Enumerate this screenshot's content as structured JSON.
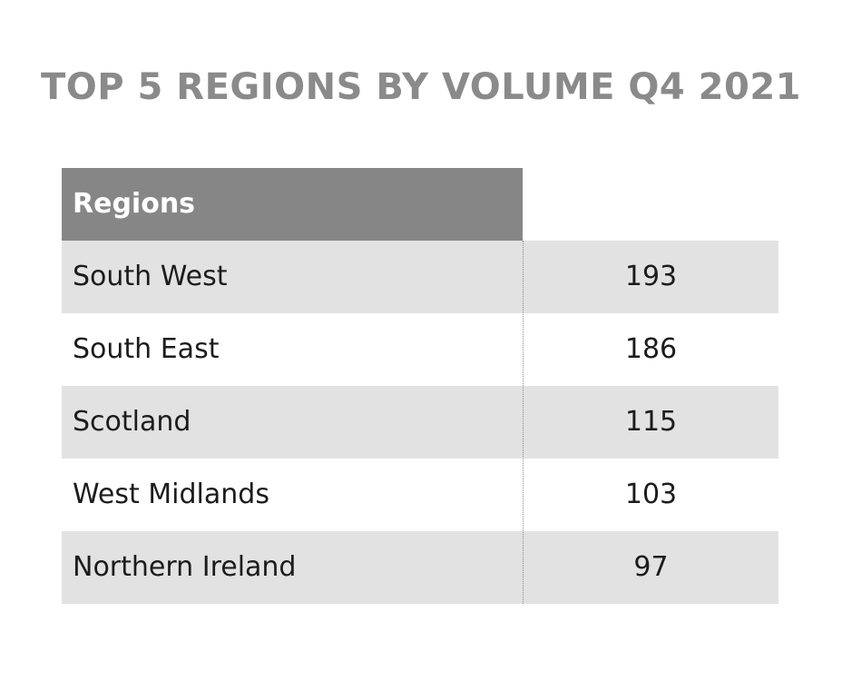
{
  "chart_data": {
    "type": "table",
    "title": "TOP 5 REGIONS BY VOLUME Q4 2021",
    "columns": [
      "Regions",
      ""
    ],
    "categories": [
      "South West",
      "South East",
      "Scotland",
      "West Midlands",
      "Northern Ireland"
    ],
    "values": [
      193,
      186,
      115,
      103,
      97
    ],
    "rows": [
      {
        "region": "South West",
        "value": "193"
      },
      {
        "region": "South East",
        "value": "186"
      },
      {
        "region": "Scotland",
        "value": "115"
      },
      {
        "region": "West Midlands",
        "value": "103"
      },
      {
        "region": "Northern Ireland",
        "value": "97"
      }
    ]
  },
  "colors": {
    "title": "#8a8a8a",
    "header_bg": "#868686",
    "row_shade": "#e2e2e2"
  }
}
